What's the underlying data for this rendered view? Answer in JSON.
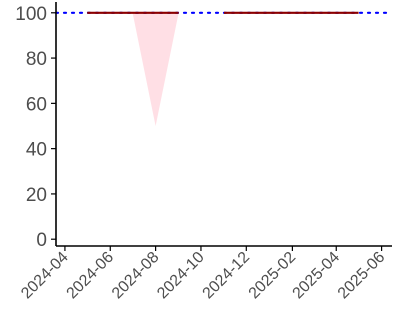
{
  "colors": {
    "axis": "#000000",
    "tick_text": "#4d4d4d",
    "line": "#8b0000",
    "reference_line": "#0000ff",
    "ribbon": "#ffc0cb"
  },
  "chart_data": {
    "type": "line",
    "title": "",
    "xlabel": "",
    "ylabel": "",
    "x_ticks": [
      "2024-04",
      "2024-06",
      "2024-08",
      "2024-10",
      "2024-12",
      "2025-02",
      "2025-04",
      "2025-06"
    ],
    "y_ticks": [
      "0",
      "20",
      "40",
      "60",
      "80",
      "100"
    ],
    "xlim": [
      "2024-03-20",
      "2025-06-15"
    ],
    "ylim": [
      -3,
      103
    ],
    "grid": false,
    "legend": "none",
    "reference_line": {
      "y": 100,
      "style": "dotted",
      "color": "#0000ff"
    },
    "series": [
      {
        "values": [
          {
            "x": "2024-05-01",
            "y": 100
          },
          {
            "x": "2024-06-01",
            "y": 100
          },
          {
            "x": "2024-07-01",
            "y": 100
          },
          {
            "x": "2024-08-01",
            "y": 100
          },
          {
            "x": "2024-09-01",
            "y": 100
          },
          {
            "x": null,
            "y": null
          },
          {
            "x": "2024-11-01",
            "y": 100
          },
          {
            "x": "2024-12-01",
            "y": 100
          },
          {
            "x": "2025-01-01",
            "y": 100
          },
          {
            "x": "2025-02-01",
            "y": 100
          },
          {
            "x": "2025-03-01",
            "y": 100
          },
          {
            "x": "2025-04-01",
            "y": 100
          },
          {
            "x": "2025-05-01",
            "y": 100
          }
        ],
        "color": "#8b0000"
      }
    ],
    "ribbon": {
      "color": "#ffc0cb",
      "points": [
        {
          "x": "2024-07-01",
          "lower": 100,
          "upper": 100
        },
        {
          "x": "2024-08-01",
          "lower": 50,
          "upper": 100
        },
        {
          "x": "2024-09-01",
          "lower": 100,
          "upper": 100
        }
      ]
    }
  }
}
